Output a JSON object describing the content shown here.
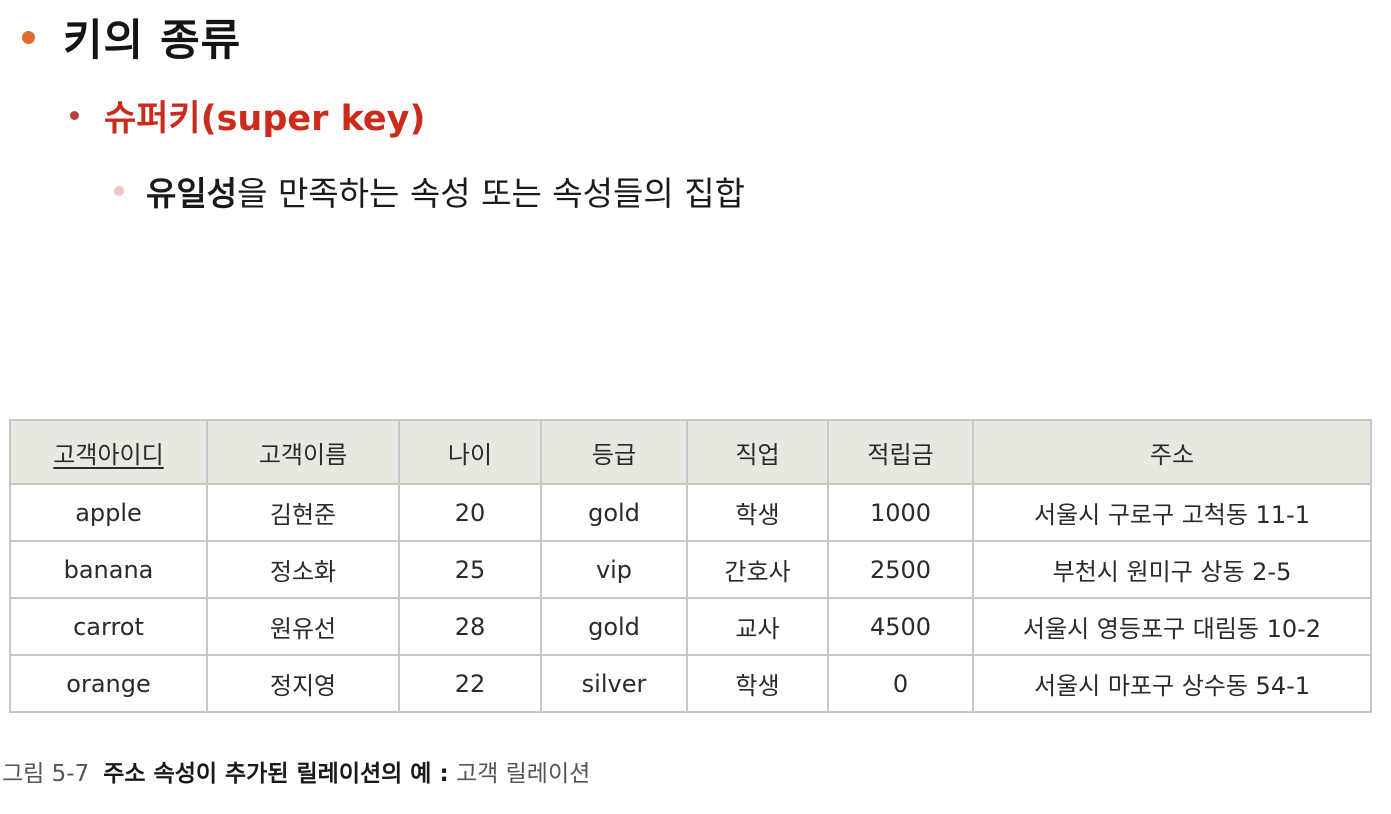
{
  "colors": {
    "level1_bullet": "#e06a30",
    "level2_bullet": "#b8433a",
    "level3_bullet": "#f3c2c6",
    "accent_red": "#cc2b1c",
    "header_bg": "#e6e9e0"
  },
  "outline": {
    "level1": "키의 종류",
    "level2": "슈퍼키(super key)",
    "level3": {
      "strong": "유일성",
      "rest": "을 만족하는 속성 또는 속성들의 집합"
    }
  },
  "table": {
    "headers": [
      "고객아이디",
      "고객이름",
      "나이",
      "등급",
      "직업",
      "적립금",
      "주소"
    ],
    "rows": [
      [
        "apple",
        "김현준",
        "20",
        "gold",
        "학생",
        "1000",
        "서울시 구로구 고척동 11-1"
      ],
      [
        "banana",
        "정소화",
        "25",
        "vip",
        "간호사",
        "2500",
        "부천시 원미구 상동 2-5"
      ],
      [
        "carrot",
        "원유선",
        "28",
        "gold",
        "교사",
        "4500",
        "서울시 영등포구 대림동 10-2"
      ],
      [
        "orange",
        "정지영",
        "22",
        "silver",
        "학생",
        "0",
        "서울시 마포구 상수동 54-1"
      ]
    ]
  },
  "caption": {
    "label": "그림 5-7",
    "bold": "주소 속성이 추가된 릴레이션의 예 :",
    "rest": "고객 릴레이션"
  }
}
